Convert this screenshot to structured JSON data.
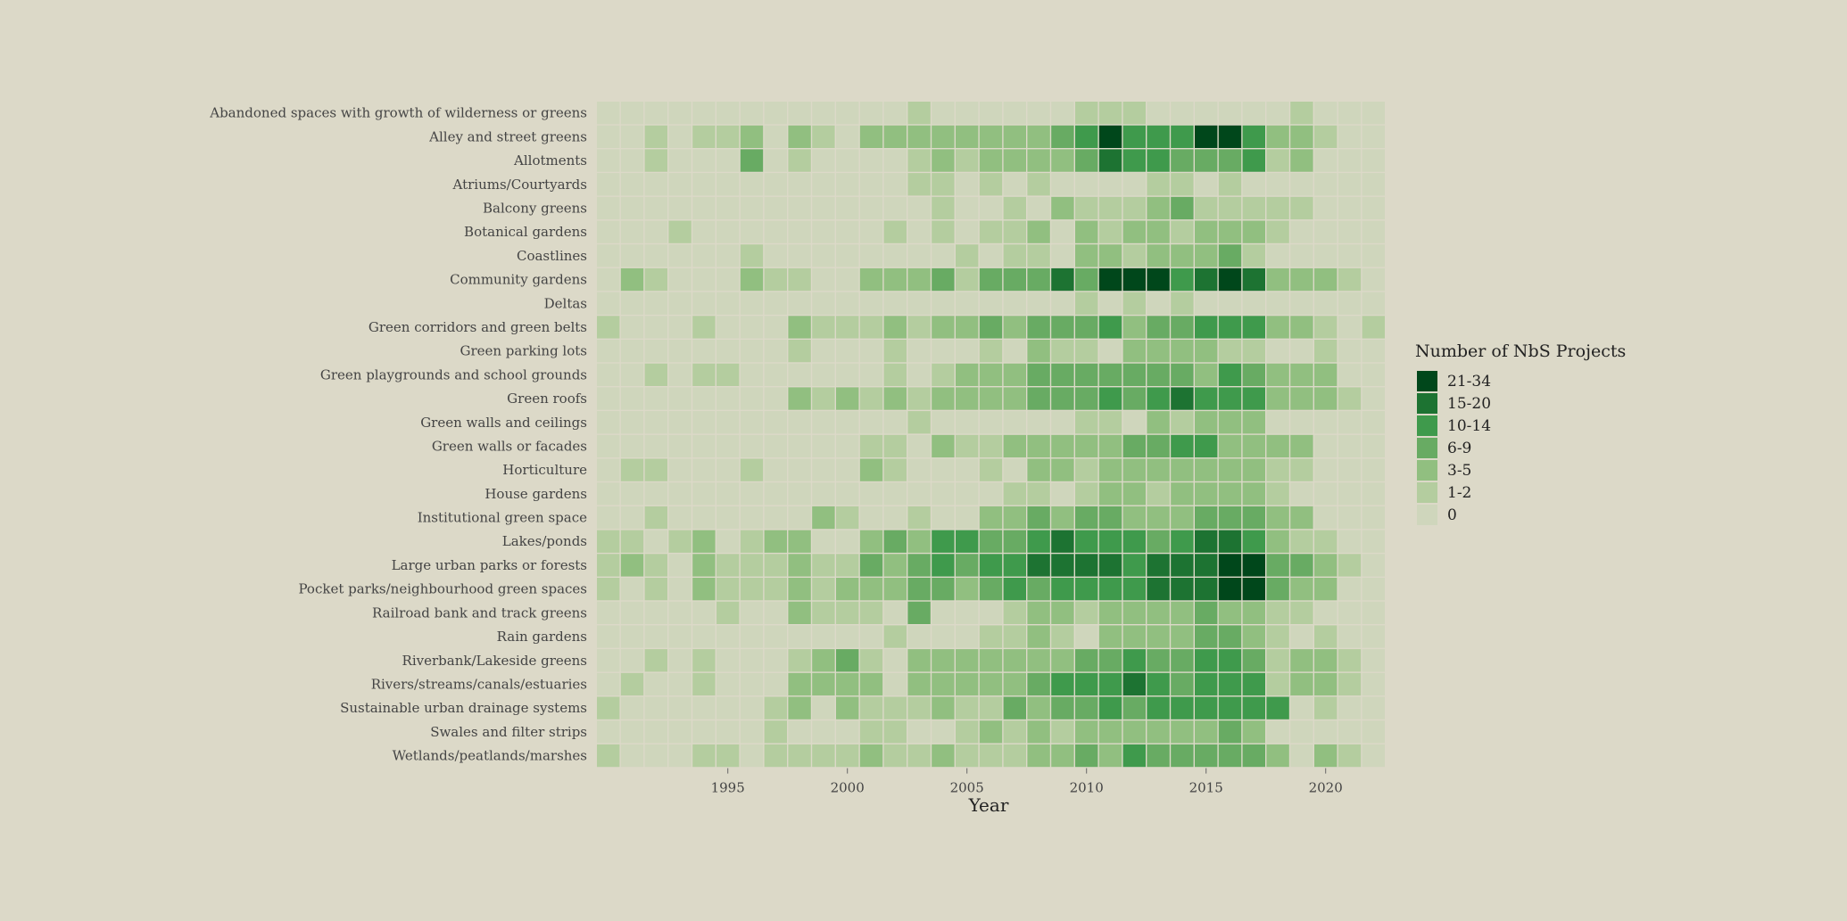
{
  "chart_data": {
    "type": "heatmap",
    "title": "",
    "xlabel": "Year",
    "ylabel": "",
    "x": [
      1990,
      1991,
      1992,
      1993,
      1994,
      1995,
      1996,
      1997,
      1998,
      1999,
      2000,
      2001,
      2002,
      2003,
      2004,
      2005,
      2006,
      2007,
      2008,
      2009,
      2010,
      2011,
      2012,
      2013,
      2014,
      2015,
      2016,
      2017,
      2018,
      2019,
      2020,
      2021,
      2022
    ],
    "x_ticks": [
      1995,
      2000,
      2005,
      2010,
      2015,
      2020
    ],
    "y": [
      "Abandoned spaces with growth of wilderness or greens",
      "Alley and street greens",
      "Allotments",
      "Atriums/Courtyards",
      "Balcony greens",
      "Botanical gardens",
      "Coastlines",
      "Community gardens",
      "Deltas",
      "Green corridors and green belts",
      "Green parking lots",
      "Green playgrounds and school grounds",
      "Green roofs",
      "Green walls and ceilings",
      "Green walls or facades",
      "Horticulture",
      "House gardens",
      "Institutional green space",
      "Lakes/ponds",
      "Large urban parks or forests",
      "Pocket parks/neighbourhood green spaces",
      "Railroad bank and track greens",
      "Rain gardens",
      "Riverbank/Lakeside greens",
      "Rivers/streams/canals/estuaries",
      "Sustainable urban drainage systems",
      "Swales and filter strips",
      "Wetlands/peatlands/marshes"
    ],
    "levels": [
      [
        0,
        0,
        0,
        0,
        0,
        0,
        0,
        0,
        0,
        0,
        0,
        0,
        0,
        1,
        0,
        0,
        0,
        0,
        0,
        0,
        1,
        1,
        1,
        0,
        0,
        0,
        0,
        0,
        0,
        1,
        0,
        0,
        0
      ],
      [
        0,
        0,
        1,
        0,
        1,
        1,
        2,
        0,
        2,
        1,
        0,
        2,
        2,
        2,
        2,
        2,
        2,
        2,
        2,
        3,
        4,
        6,
        4,
        4,
        4,
        6,
        6,
        4,
        2,
        2,
        1,
        0,
        0
      ],
      [
        0,
        0,
        1,
        0,
        0,
        0,
        3,
        0,
        1,
        0,
        0,
        0,
        0,
        1,
        2,
        1,
        2,
        2,
        2,
        2,
        3,
        5,
        4,
        4,
        3,
        3,
        3,
        4,
        1,
        2,
        0,
        0,
        0
      ],
      [
        0,
        0,
        0,
        0,
        0,
        0,
        0,
        0,
        0,
        0,
        0,
        0,
        0,
        1,
        1,
        0,
        1,
        0,
        1,
        0,
        0,
        0,
        0,
        1,
        1,
        0,
        1,
        0,
        0,
        0,
        0,
        0,
        0
      ],
      [
        0,
        0,
        0,
        0,
        0,
        0,
        0,
        0,
        0,
        0,
        0,
        0,
        0,
        0,
        1,
        0,
        0,
        1,
        0,
        2,
        1,
        1,
        1,
        2,
        3,
        1,
        1,
        1,
        1,
        1,
        0,
        0,
        0
      ],
      [
        0,
        0,
        0,
        1,
        0,
        0,
        0,
        0,
        0,
        0,
        0,
        0,
        1,
        0,
        1,
        0,
        1,
        1,
        2,
        0,
        2,
        1,
        2,
        2,
        1,
        2,
        2,
        2,
        1,
        0,
        0,
        0,
        0
      ],
      [
        0,
        0,
        0,
        0,
        0,
        0,
        1,
        0,
        0,
        0,
        0,
        0,
        0,
        0,
        0,
        1,
        0,
        1,
        1,
        0,
        2,
        2,
        1,
        2,
        2,
        2,
        3,
        1,
        0,
        0,
        0,
        0,
        0
      ],
      [
        0,
        2,
        1,
        0,
        0,
        0,
        2,
        1,
        1,
        0,
        0,
        2,
        2,
        2,
        3,
        1,
        3,
        3,
        3,
        5,
        3,
        6,
        6,
        6,
        4,
        5,
        6,
        5,
        2,
        2,
        2,
        1,
        0
      ],
      [
        0,
        0,
        0,
        0,
        0,
        0,
        0,
        0,
        0,
        0,
        0,
        0,
        0,
        0,
        0,
        0,
        0,
        0,
        0,
        0,
        1,
        0,
        1,
        0,
        1,
        0,
        0,
        0,
        0,
        0,
        0,
        0,
        0
      ],
      [
        1,
        0,
        0,
        0,
        1,
        0,
        0,
        0,
        2,
        1,
        1,
        1,
        2,
        1,
        2,
        2,
        3,
        2,
        3,
        3,
        3,
        4,
        2,
        3,
        3,
        4,
        4,
        4,
        2,
        2,
        1,
        0,
        1
      ],
      [
        0,
        0,
        0,
        0,
        0,
        0,
        0,
        0,
        1,
        0,
        0,
        0,
        1,
        0,
        0,
        0,
        1,
        0,
        2,
        1,
        1,
        0,
        2,
        2,
        2,
        2,
        1,
        1,
        0,
        0,
        1,
        0,
        0
      ],
      [
        0,
        0,
        1,
        0,
        1,
        1,
        0,
        0,
        0,
        0,
        0,
        0,
        1,
        0,
        1,
        2,
        2,
        2,
        3,
        3,
        3,
        3,
        3,
        3,
        3,
        2,
        4,
        3,
        2,
        2,
        2,
        0,
        0
      ],
      [
        0,
        0,
        0,
        0,
        0,
        0,
        0,
        0,
        2,
        1,
        2,
        1,
        2,
        1,
        2,
        2,
        2,
        2,
        3,
        3,
        3,
        4,
        3,
        4,
        5,
        4,
        4,
        4,
        2,
        2,
        2,
        1,
        0
      ],
      [
        0,
        0,
        0,
        0,
        0,
        0,
        0,
        0,
        0,
        0,
        0,
        0,
        0,
        1,
        0,
        0,
        0,
        0,
        0,
        0,
        1,
        1,
        0,
        2,
        1,
        2,
        2,
        2,
        0,
        0,
        0,
        0,
        0
      ],
      [
        0,
        0,
        0,
        0,
        0,
        0,
        0,
        0,
        0,
        0,
        0,
        1,
        1,
        0,
        2,
        1,
        1,
        2,
        2,
        2,
        2,
        2,
        3,
        3,
        4,
        4,
        2,
        2,
        2,
        2,
        0,
        0,
        0
      ],
      [
        0,
        1,
        1,
        0,
        0,
        0,
        1,
        0,
        0,
        0,
        0,
        2,
        1,
        0,
        0,
        0,
        1,
        0,
        2,
        2,
        1,
        2,
        2,
        2,
        2,
        2,
        2,
        2,
        1,
        1,
        0,
        0,
        0
      ],
      [
        0,
        0,
        0,
        0,
        0,
        0,
        0,
        0,
        0,
        0,
        0,
        0,
        0,
        0,
        0,
        0,
        0,
        1,
        1,
        0,
        1,
        2,
        2,
        1,
        2,
        2,
        2,
        2,
        1,
        0,
        0,
        0,
        0
      ],
      [
        0,
        0,
        1,
        0,
        0,
        0,
        0,
        0,
        0,
        2,
        1,
        0,
        0,
        1,
        0,
        0,
        2,
        2,
        3,
        2,
        3,
        3,
        2,
        2,
        2,
        3,
        3,
        3,
        2,
        2,
        0,
        0,
        0
      ],
      [
        1,
        1,
        0,
        1,
        2,
        0,
        1,
        2,
        2,
        0,
        0,
        2,
        3,
        2,
        4,
        4,
        3,
        3,
        4,
        5,
        4,
        4,
        4,
        3,
        4,
        5,
        5,
        4,
        2,
        1,
        1,
        0,
        0
      ],
      [
        1,
        2,
        1,
        0,
        2,
        1,
        1,
        1,
        2,
        1,
        1,
        3,
        2,
        3,
        4,
        3,
        4,
        4,
        5,
        5,
        5,
        5,
        4,
        5,
        5,
        5,
        6,
        6,
        3,
        3,
        2,
        1,
        0
      ],
      [
        1,
        0,
        1,
        0,
        2,
        1,
        1,
        1,
        2,
        1,
        2,
        2,
        2,
        3,
        3,
        2,
        3,
        4,
        3,
        4,
        4,
        4,
        4,
        5,
        5,
        5,
        6,
        6,
        3,
        2,
        2,
        0,
        0
      ],
      [
        0,
        0,
        0,
        0,
        0,
        1,
        0,
        0,
        2,
        1,
        1,
        1,
        0,
        3,
        0,
        0,
        0,
        1,
        2,
        2,
        1,
        2,
        2,
        2,
        2,
        3,
        2,
        2,
        1,
        1,
        0,
        0,
        0
      ],
      [
        0,
        0,
        0,
        0,
        0,
        0,
        0,
        0,
        0,
        0,
        0,
        0,
        1,
        0,
        0,
        0,
        1,
        1,
        2,
        1,
        0,
        2,
        2,
        2,
        2,
        3,
        3,
        2,
        1,
        0,
        1,
        0,
        0
      ],
      [
        0,
        0,
        1,
        0,
        1,
        0,
        0,
        0,
        1,
        2,
        3,
        1,
        0,
        2,
        2,
        2,
        2,
        2,
        2,
        2,
        3,
        3,
        4,
        3,
        3,
        4,
        4,
        3,
        1,
        2,
        2,
        1,
        0
      ],
      [
        0,
        1,
        0,
        0,
        1,
        0,
        0,
        0,
        2,
        2,
        2,
        2,
        0,
        2,
        2,
        2,
        2,
        2,
        3,
        4,
        4,
        4,
        5,
        4,
        3,
        4,
        4,
        4,
        1,
        2,
        2,
        1,
        0
      ],
      [
        1,
        0,
        0,
        0,
        0,
        0,
        0,
        1,
        2,
        0,
        2,
        1,
        1,
        1,
        2,
        1,
        1,
        3,
        2,
        3,
        3,
        4,
        3,
        4,
        4,
        4,
        4,
        4,
        4,
        0,
        1,
        0,
        0
      ],
      [
        0,
        0,
        0,
        0,
        0,
        0,
        0,
        1,
        0,
        0,
        0,
        1,
        1,
        0,
        0,
        1,
        2,
        1,
        2,
        1,
        2,
        2,
        2,
        2,
        2,
        2,
        3,
        2,
        0,
        0,
        0,
        0,
        0
      ],
      [
        1,
        0,
        0,
        0,
        1,
        1,
        0,
        1,
        1,
        1,
        1,
        2,
        1,
        1,
        2,
        1,
        1,
        1,
        2,
        2,
        3,
        2,
        4,
        3,
        3,
        3,
        3,
        3,
        2,
        0,
        2,
        1,
        0
      ]
    ],
    "legend": {
      "title": "Number of NbS Projects",
      "placement": "right",
      "items": [
        {
          "label": "21-34",
          "color": "#00471b"
        },
        {
          "label": "15-20",
          "color": "#1d7332"
        },
        {
          "label": "10-14",
          "color": "#3f9a4c"
        },
        {
          "label": "6-9",
          "color": "#68ab63"
        },
        {
          "label": "3-5",
          "color": "#91bf80"
        },
        {
          "label": "1-2",
          "color": "#b4cd9f"
        },
        {
          "label": "0",
          "color": "#cfd6bc"
        }
      ]
    },
    "colors": [
      "#cfd6bc",
      "#b4cd9f",
      "#91bf80",
      "#68ab63",
      "#3f9a4c",
      "#1d7332",
      "#00471b"
    ]
  }
}
